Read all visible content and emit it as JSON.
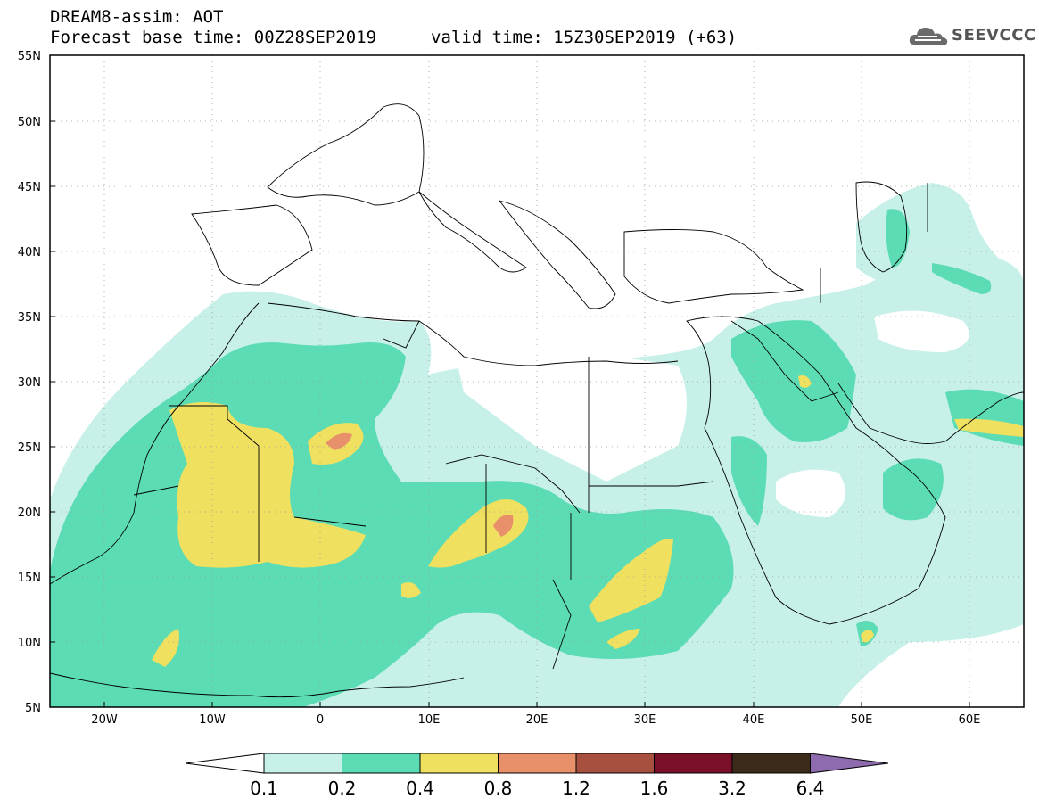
{
  "header": {
    "title": "DREAM8-assim: AOT",
    "base_time": "Forecast base time: 00Z28SEP2019",
    "valid_time": "valid time: 15Z30SEP2019 (+63)"
  },
  "logo": {
    "text": "SEEVCCC",
    "icon": "cloud-icon"
  },
  "map": {
    "lat_labels": [
      "55N",
      "50N",
      "45N",
      "40N",
      "35N",
      "30N",
      "25N",
      "20N",
      "15N",
      "10N",
      "5N"
    ],
    "lon_labels": [
      "20W",
      "10W",
      "0",
      "10E",
      "20E",
      "30E",
      "40E",
      "50E",
      "60E"
    ],
    "lon_range": [
      -25,
      65
    ],
    "lat_range": [
      5,
      55
    ],
    "variable": "AOT"
  },
  "colorbar": {
    "labels": [
      "0.1",
      "0.2",
      "0.4",
      "0.8",
      "1.2",
      "1.6",
      "3.2",
      "6.4"
    ],
    "colors": [
      "#ffffff",
      "#c6f0e8",
      "#5bdcb4",
      "#f0e060",
      "#e8906a",
      "#a85040",
      "#7a0f28",
      "#3c2a1a",
      "#8e6aae"
    ]
  }
}
